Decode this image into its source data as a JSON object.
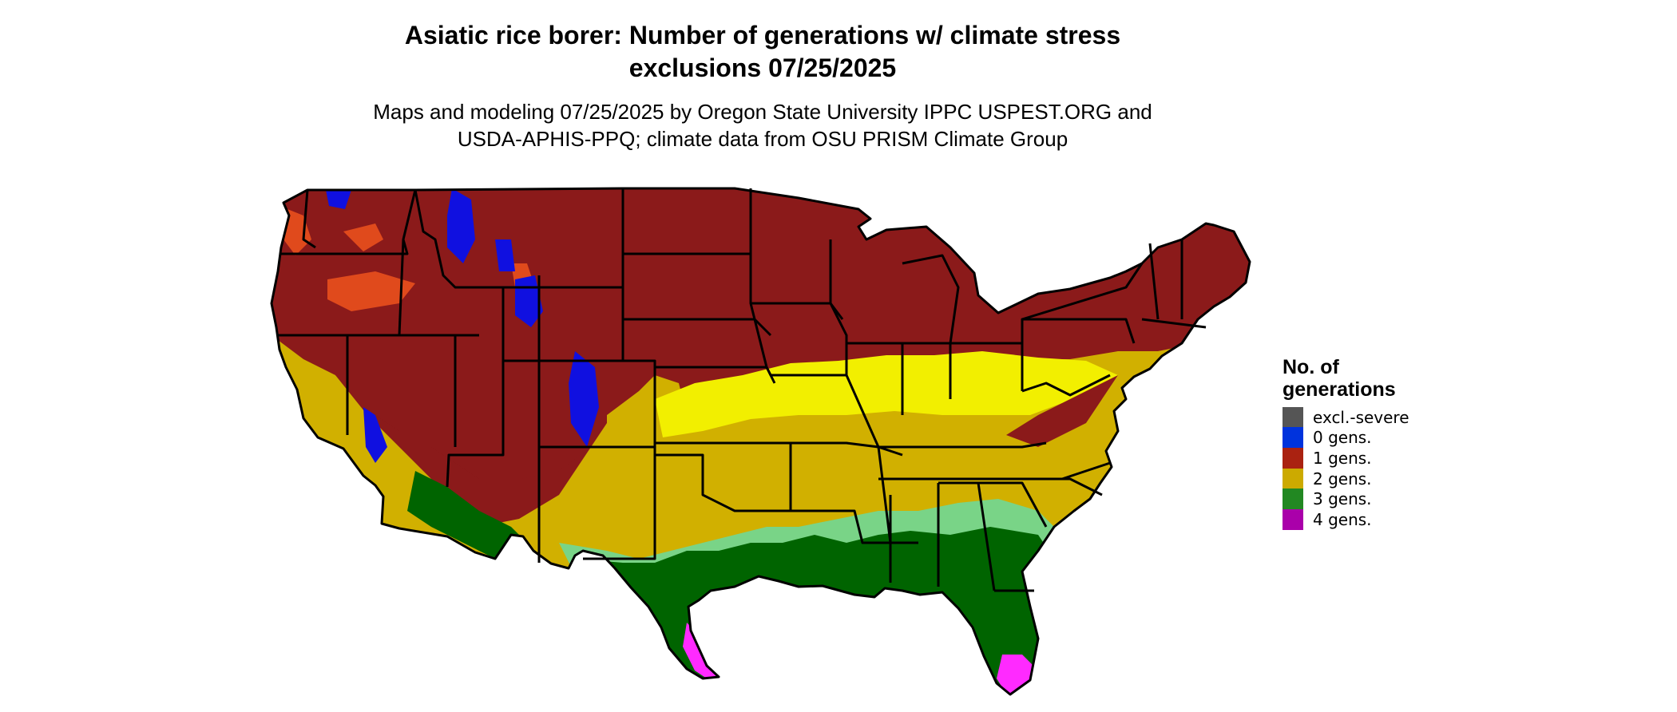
{
  "title": {
    "line1": "Asiatic rice borer: Number of generations w/ climate stress",
    "line2": "exclusions 07/25/2025"
  },
  "subtitle": {
    "line1": "Maps and modeling 07/25/2025 by Oregon State University IPPC USPEST.ORG and",
    "line2": "USDA-APHIS-PPQ; climate data from OSU PRISM Climate Group"
  },
  "legend": {
    "title_line1": "No. of",
    "title_line2": "generations",
    "items": [
      {
        "label": "excl.-severe",
        "color": "#555555"
      },
      {
        "label": "0 gens.",
        "color": "#0033dd"
      },
      {
        "label": "1 gens.",
        "color": "#aa2211"
      },
      {
        "label": "2 gens.",
        "color": "#ccaa00"
      },
      {
        "label": "3 gens.",
        "color": "#228822"
      },
      {
        "label": "4 gens.",
        "color": "#aa00aa"
      }
    ]
  },
  "map_colors": {
    "one_gen_dark": "#8b1a1a",
    "one_gen_orange": "#e04a1c",
    "two_gen": "#d1b000",
    "two_gen_light": "#f2ef00",
    "three_gen": "#006400",
    "three_gen_light": "#79d487",
    "four_gen": "#ff2aff",
    "zero_gen": "#1010e0",
    "borders": "#000000"
  }
}
